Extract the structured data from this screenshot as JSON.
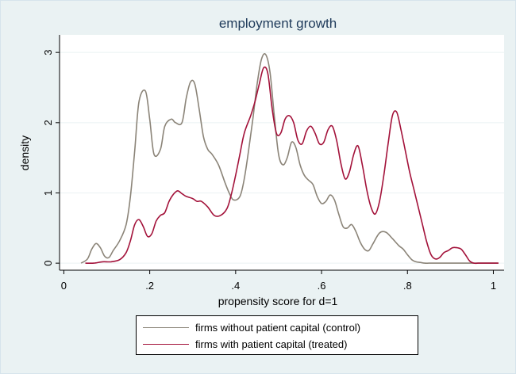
{
  "chart_data": {
    "type": "line",
    "title": "employment growth",
    "xlabel": "propensity score for d=1",
    "ylabel": "density",
    "xlim": [
      -0.01,
      1.025
    ],
    "ylim": [
      -0.1,
      3.25
    ],
    "xticks": [
      0,
      0.2,
      0.4,
      0.6,
      0.8,
      1
    ],
    "xtick_labels": [
      "0",
      ".2",
      ".4",
      ".6",
      ".8",
      "1"
    ],
    "yticks": [
      0,
      1,
      2,
      3
    ],
    "ytick_labels": [
      "0",
      "1",
      "2",
      "3"
    ],
    "grid": "horizontal",
    "legend": "bottom",
    "series": [
      {
        "name": "firms without patient capital (control)",
        "color": "#8b8478",
        "x": [
          0.04,
          0.055,
          0.065,
          0.075,
          0.085,
          0.095,
          0.105,
          0.115,
          0.13,
          0.145,
          0.155,
          0.165,
          0.175,
          0.19,
          0.2,
          0.21,
          0.225,
          0.235,
          0.25,
          0.26,
          0.275,
          0.285,
          0.295,
          0.305,
          0.315,
          0.325,
          0.335,
          0.345,
          0.36,
          0.375,
          0.385,
          0.395,
          0.41,
          0.42,
          0.43,
          0.44,
          0.45,
          0.46,
          0.47,
          0.48,
          0.49,
          0.5,
          0.51,
          0.52,
          0.53,
          0.54,
          0.55,
          0.56,
          0.57,
          0.58,
          0.59,
          0.6,
          0.61,
          0.62,
          0.63,
          0.64,
          0.65,
          0.66,
          0.67,
          0.68,
          0.69,
          0.7,
          0.71,
          0.72,
          0.735,
          0.75,
          0.765,
          0.78,
          0.79,
          0.8,
          0.81,
          0.82,
          0.83,
          0.84,
          0.85,
          0.86,
          0.875,
          0.89,
          0.905,
          0.92,
          0.94,
          0.96,
          0.98,
          1.0,
          1.01
        ],
        "y": [
          0,
          0.06,
          0.2,
          0.28,
          0.22,
          0.1,
          0.08,
          0.18,
          0.32,
          0.55,
          0.95,
          1.6,
          2.3,
          2.45,
          2.05,
          1.55,
          1.62,
          1.95,
          2.05,
          2.0,
          2.0,
          2.35,
          2.58,
          2.55,
          2.2,
          1.8,
          1.62,
          1.55,
          1.4,
          1.15,
          1.0,
          0.9,
          0.95,
          1.2,
          1.6,
          2.05,
          2.55,
          2.9,
          2.97,
          2.72,
          2.1,
          1.55,
          1.4,
          1.5,
          1.72,
          1.65,
          1.4,
          1.25,
          1.18,
          1.12,
          0.95,
          0.85,
          0.88,
          0.97,
          0.9,
          0.7,
          0.52,
          0.5,
          0.55,
          0.45,
          0.3,
          0.2,
          0.18,
          0.28,
          0.43,
          0.44,
          0.35,
          0.25,
          0.2,
          0.12,
          0.05,
          0.02,
          0.01,
          0.0,
          0.0,
          0.0,
          0.0,
          0.0,
          0.0,
          0.0,
          0.0,
          0.0,
          0.0,
          0.0,
          0.0
        ]
      },
      {
        "name": "firms with patient capital (treated)",
        "color": "#a3123a",
        "x": [
          0.05,
          0.07,
          0.09,
          0.11,
          0.13,
          0.145,
          0.155,
          0.165,
          0.175,
          0.185,
          0.195,
          0.205,
          0.215,
          0.225,
          0.235,
          0.245,
          0.255,
          0.265,
          0.275,
          0.285,
          0.3,
          0.31,
          0.32,
          0.335,
          0.35,
          0.365,
          0.38,
          0.39,
          0.4,
          0.41,
          0.42,
          0.435,
          0.445,
          0.455,
          0.465,
          0.475,
          0.485,
          0.495,
          0.505,
          0.515,
          0.525,
          0.535,
          0.545,
          0.555,
          0.565,
          0.575,
          0.585,
          0.595,
          0.605,
          0.615,
          0.625,
          0.635,
          0.645,
          0.655,
          0.665,
          0.675,
          0.685,
          0.695,
          0.705,
          0.715,
          0.725,
          0.735,
          0.745,
          0.755,
          0.765,
          0.775,
          0.785,
          0.795,
          0.805,
          0.815,
          0.825,
          0.835,
          0.845,
          0.855,
          0.865,
          0.875,
          0.885,
          0.895,
          0.905,
          0.915,
          0.925,
          0.935,
          0.945,
          0.955,
          0.965,
          0.975,
          0.985,
          0.995,
          1.005,
          1.012
        ],
        "y": [
          0.0,
          0.0,
          0.02,
          0.02,
          0.05,
          0.15,
          0.32,
          0.55,
          0.62,
          0.52,
          0.38,
          0.42,
          0.6,
          0.68,
          0.72,
          0.88,
          0.98,
          1.03,
          0.99,
          0.95,
          0.92,
          0.88,
          0.88,
          0.8,
          0.68,
          0.68,
          0.78,
          0.98,
          1.25,
          1.55,
          1.85,
          2.1,
          2.3,
          2.55,
          2.78,
          2.7,
          2.2,
          1.85,
          1.85,
          2.05,
          2.1,
          2.0,
          1.75,
          1.7,
          1.88,
          1.95,
          1.85,
          1.7,
          1.72,
          1.9,
          1.95,
          1.75,
          1.42,
          1.2,
          1.3,
          1.55,
          1.67,
          1.4,
          1.05,
          0.8,
          0.7,
          0.88,
          1.25,
          1.7,
          2.1,
          2.15,
          1.9,
          1.6,
          1.3,
          1.05,
          0.8,
          0.55,
          0.3,
          0.12,
          0.06,
          0.08,
          0.15,
          0.18,
          0.22,
          0.22,
          0.2,
          0.12,
          0.03,
          0.0,
          0.0,
          0.0,
          0.0,
          0.0,
          0.0,
          0.0
        ]
      }
    ]
  }
}
